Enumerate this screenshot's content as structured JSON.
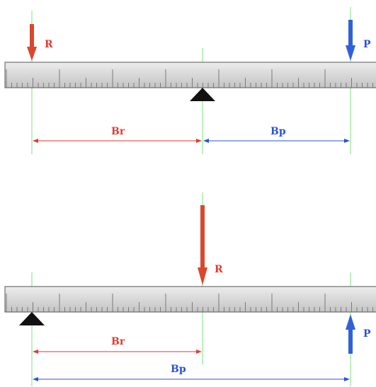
{
  "colors": {
    "red": "#e53a30",
    "red_arrow": "#d9482d",
    "blue": "#2a52d6",
    "blue_arrow": "#2f62d8",
    "guide": "#7ee07e",
    "ruler_fill": "#d6d6d6",
    "ruler_edge": "#555555",
    "tick": "#777777",
    "fulcrum": "#111111"
  },
  "top_diagram": {
    "force_r_label": "R",
    "force_p_label": "P",
    "dim_r_label": "Br",
    "dim_p_label": "Bp",
    "force_r_direction": "down",
    "force_p_direction": "down",
    "fulcrum": "middle"
  },
  "bottom_diagram": {
    "force_r_label": "R",
    "force_p_label": "P",
    "dim_r_label": "Br",
    "dim_p_label": "Bp",
    "force_r_direction": "down",
    "force_p_direction": "up",
    "fulcrum": "left"
  }
}
